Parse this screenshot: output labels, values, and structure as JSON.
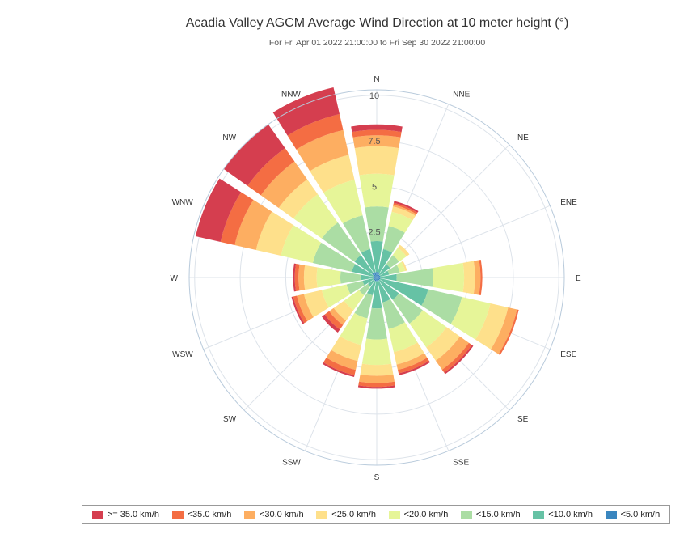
{
  "chart_data": {
    "type": "wind-rose",
    "title": "Acadia Valley AGCM Average Wind Direction at 10 meter height (°)",
    "subtitle": "For Fri Apr 01 2022 21:00:00 to Fri Sep 30 2022 21:00:00",
    "directions": [
      "N",
      "NNE",
      "NE",
      "ENE",
      "E",
      "ESE",
      "SE",
      "SSE",
      "S",
      "SSW",
      "SW",
      "WSW",
      "W",
      "WNW",
      "NW",
      "NNW"
    ],
    "radial_ticks": [
      "2.5",
      "5",
      "7.5",
      "10"
    ],
    "radial_max": 10.3,
    "radial_tick_values": [
      2.5,
      5,
      7.5,
      10
    ],
    "series": [
      {
        "name": "<5.0 km/h",
        "color": "#3a86bf",
        "values": [
          0.3,
          0.3,
          0.2,
          0.2,
          0.2,
          0.2,
          0.2,
          0.2,
          0.2,
          0.2,
          0.2,
          0.2,
          0.2,
          0.2,
          0.3,
          0.3
        ]
      },
      {
        "name": "<10.0 km/h",
        "color": "#66c2a5",
        "values": [
          1.7,
          1.3,
          0.7,
          0.5,
          0.9,
          2.7,
          1.3,
          1.2,
          1.5,
          0.8,
          0.4,
          0.6,
          0.7,
          1.2,
          1.2,
          1.3
        ]
      },
      {
        "name": "<15.0 km/h",
        "color": "#abdda4",
        "values": [
          1.9,
          1.3,
          0.6,
          0.6,
          2.0,
          1.9,
          1.6,
          1.5,
          1.7,
          1.3,
          0.6,
          0.9,
          1.1,
          2.2,
          2.2,
          1.9
        ]
      },
      {
        "name": "<20.0 km/h",
        "color": "#e6f598",
        "values": [
          1.8,
          0.8,
          0.5,
          0.3,
          1.7,
          1.6,
          1.6,
          1.3,
          1.4,
          1.5,
          1.0,
          1.4,
          1.3,
          1.8,
          1.9,
          2.0
        ]
      },
      {
        "name": "<25.0 km/h",
        "color": "#fee08b",
        "values": [
          1.5,
          0.3,
          0.2,
          0.1,
          0.6,
          1.0,
          0.9,
          0.7,
          0.6,
          0.9,
          0.7,
          1.0,
          0.7,
          1.4,
          1.0,
          1.4
        ]
      },
      {
        "name": "<30.0 km/h",
        "color": "#fdae61",
        "values": [
          0.6,
          0.1,
          0.0,
          0.0,
          0.3,
          0.5,
          0.6,
          0.3,
          0.4,
          0.5,
          0.3,
          0.4,
          0.3,
          1.2,
          1.2,
          1.4
        ]
      },
      {
        "name": "<35.0 km/h",
        "color": "#f46d43",
        "values": [
          0.3,
          0.1,
          0.0,
          0.0,
          0.1,
          0.1,
          0.2,
          0.2,
          0.2,
          0.3,
          0.3,
          0.2,
          0.2,
          0.8,
          0.9,
          0.9
        ]
      },
      {
        "name": ">= 35.0 km/h",
        "color": "#d53e4f",
        "values": [
          0.3,
          0.1,
          0.0,
          0.0,
          0.0,
          0.0,
          0.1,
          0.1,
          0.1,
          0.1,
          0.2,
          0.1,
          0.1,
          1.4,
          1.6,
          1.5
        ]
      }
    ],
    "legend_order": [
      ">= 35.0 km/h",
      "<35.0 km/h",
      "<30.0 km/h",
      "<25.0 km/h",
      "<20.0 km/h",
      "<15.0 km/h",
      "<10.0 km/h",
      "<5.0 km/h"
    ],
    "legend_placement": "bottom",
    "grid": true
  }
}
